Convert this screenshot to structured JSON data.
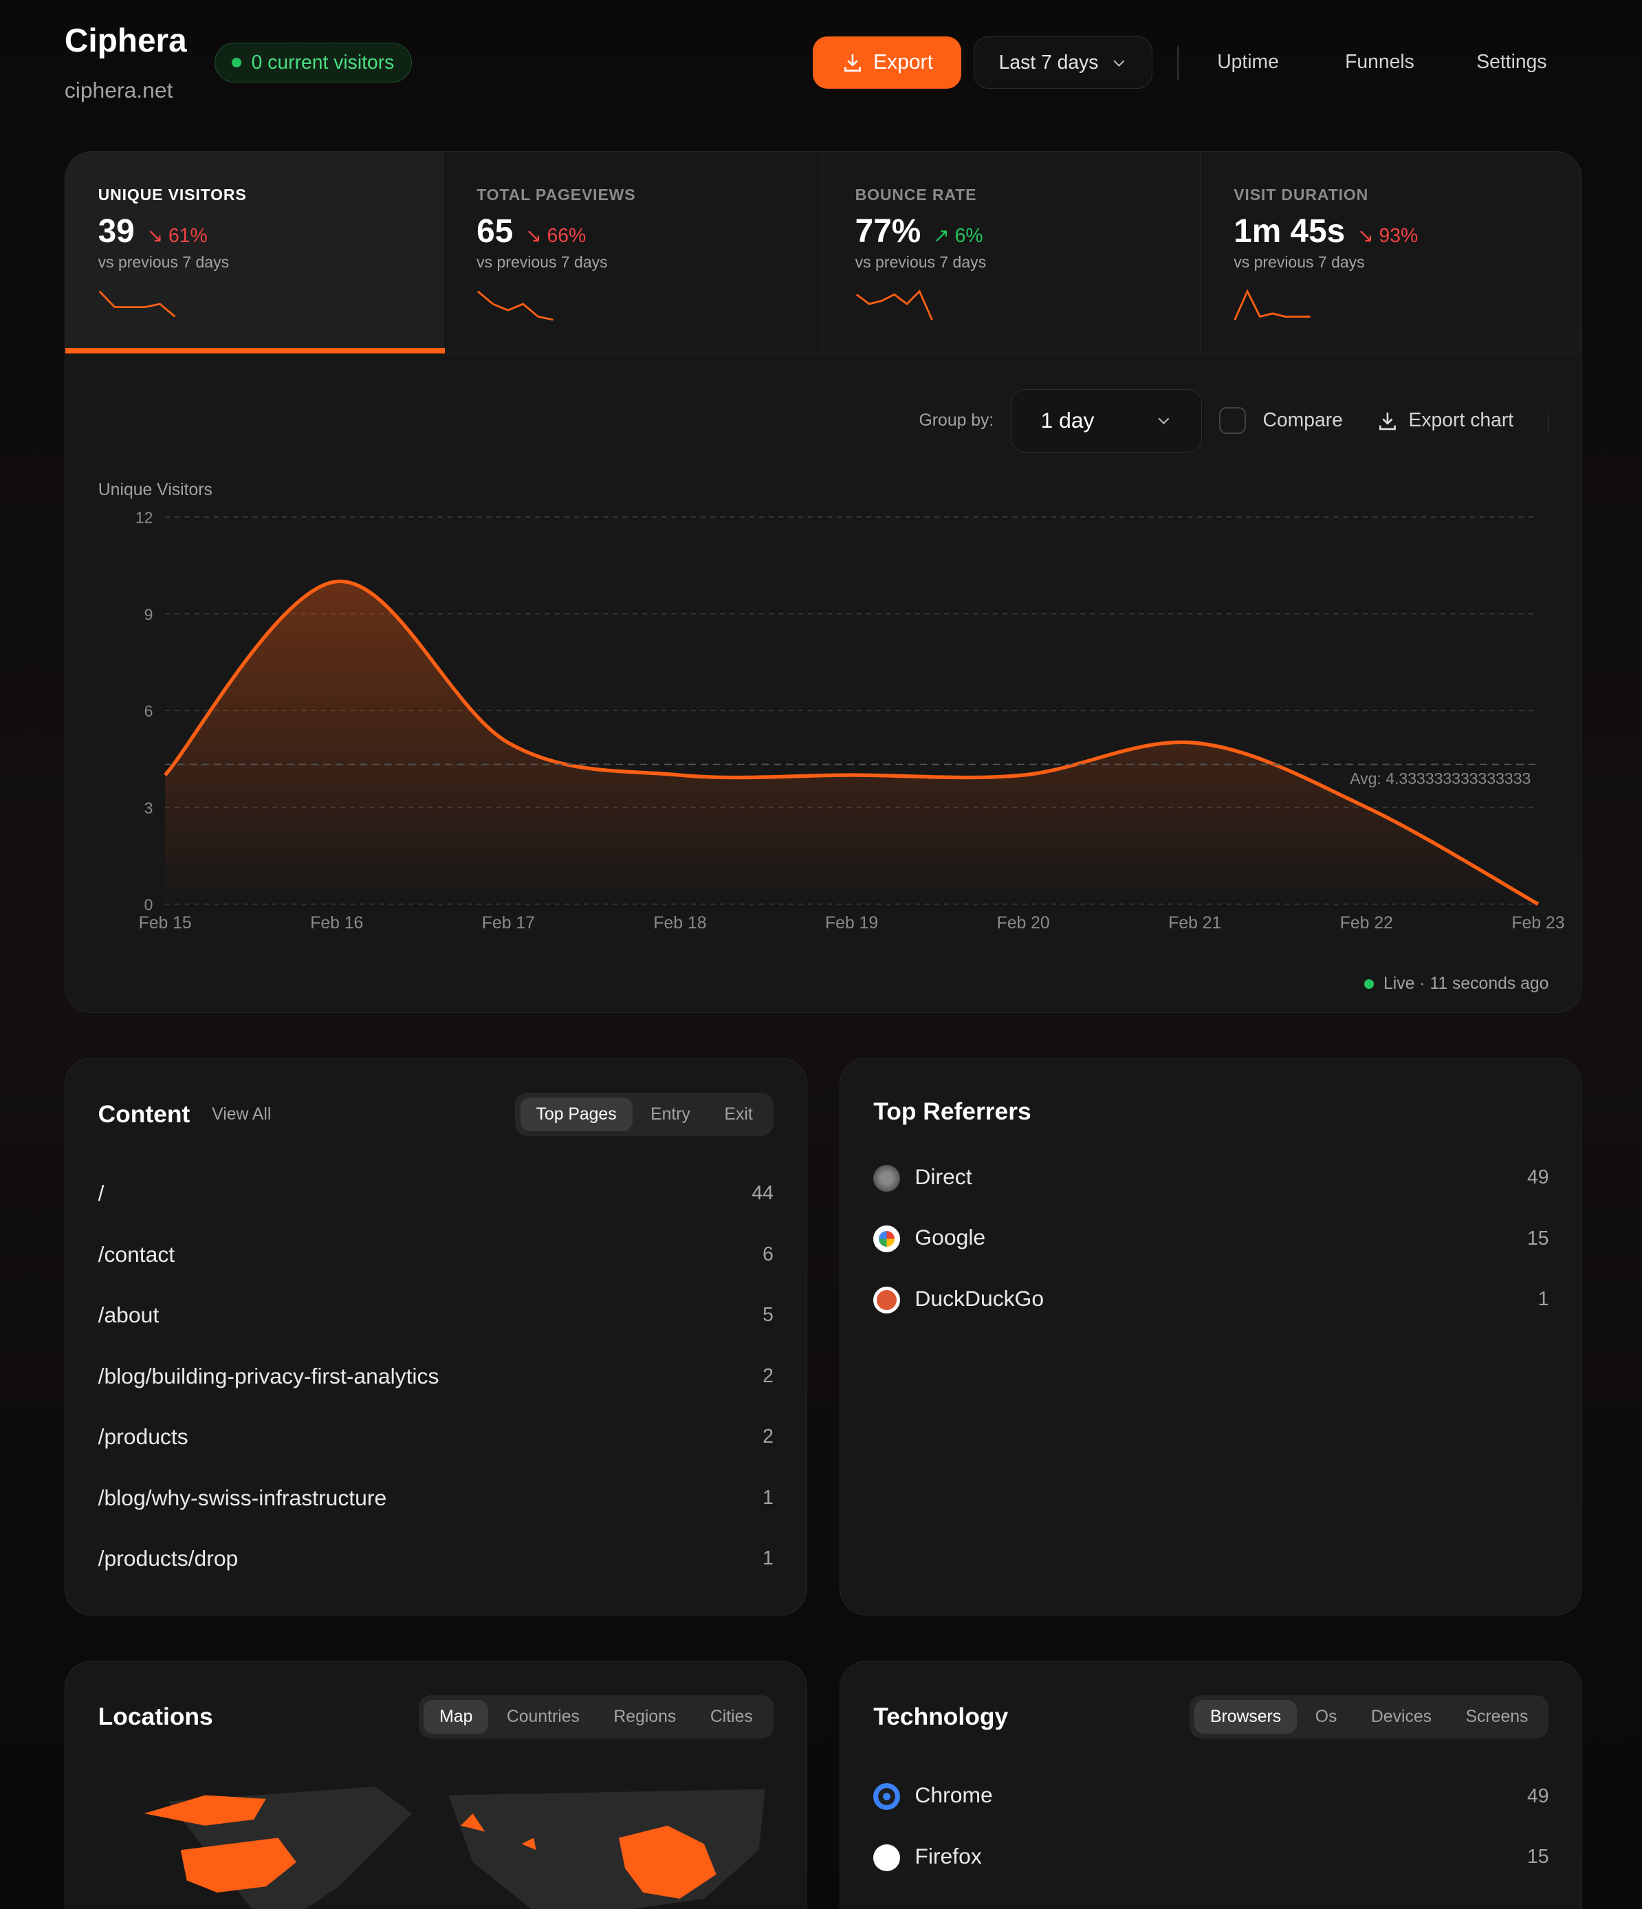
{
  "header": {
    "title": "Ciphera",
    "domain": "ciphera.net",
    "visitors_badge": "0 current visitors",
    "export_label": "Export",
    "date_range": "Last 7 days",
    "nav": [
      "Uptime",
      "Funnels",
      "Settings"
    ]
  },
  "colors": {
    "accent": "#fd5f14",
    "positive": "#22c55e",
    "negative": "#ef4444"
  },
  "stats": [
    {
      "label": "UNIQUE VISITORS",
      "value": "39",
      "change": "↘ 61%",
      "trend": "down",
      "vs": "vs previous 7 days",
      "spark": [
        9,
        4,
        4,
        4,
        5,
        1
      ]
    },
    {
      "label": "TOTAL PAGEVIEWS",
      "value": "65",
      "change": "↘ 66%",
      "trend": "down",
      "vs": "vs previous 7 days",
      "spark": [
        9,
        5,
        3,
        5,
        1,
        0
      ]
    },
    {
      "label": "BOUNCE RATE",
      "value": "77%",
      "change": "↗ 6%",
      "trend": "up",
      "vs": "vs previous 7 days",
      "spark": [
        8,
        5,
        6,
        8,
        5,
        9,
        0
      ]
    },
    {
      "label": "VISIT DURATION",
      "value": "1m 45s",
      "change": "↘ 93%",
      "trend": "down",
      "vs": "vs previous 7 days",
      "spark": [
        0,
        9,
        1,
        2,
        1,
        1,
        1
      ]
    }
  ],
  "chart_controls": {
    "group_by_label": "Group by:",
    "group_by_value": "1 day",
    "compare_label": "Compare",
    "export_chart_label": "Export chart",
    "live": "Live · 11 seconds ago"
  },
  "chart_data": {
    "type": "area",
    "ylabel": "Unique Visitors",
    "x": [
      "Feb 15",
      "Feb 16",
      "Feb 17",
      "Feb 18",
      "Feb 19",
      "Feb 20",
      "Feb 21",
      "Feb 22",
      "Feb 23"
    ],
    "values": [
      4,
      10,
      5,
      4,
      4,
      4,
      5,
      3,
      0
    ],
    "ylim": [
      0,
      12
    ],
    "yticks": [
      0,
      3,
      6,
      9,
      12
    ],
    "grid": true,
    "avg": 4.333333333333333,
    "avg_label": "Avg: 4.333333333333333"
  },
  "content": {
    "title": "Content",
    "view_all": "View All",
    "tabs": [
      "Top Pages",
      "Entry",
      "Exit"
    ],
    "rows": [
      {
        "path": "/",
        "count": "44"
      },
      {
        "path": "/contact",
        "count": "6"
      },
      {
        "path": "/about",
        "count": "5"
      },
      {
        "path": "/blog/building-privacy-first-analytics",
        "count": "2"
      },
      {
        "path": "/products",
        "count": "2"
      },
      {
        "path": "/blog/why-swiss-infrastructure",
        "count": "1"
      },
      {
        "path": "/products/drop",
        "count": "1"
      }
    ]
  },
  "referrers": {
    "title": "Top Referrers",
    "rows": [
      {
        "name": "Direct",
        "count": "49",
        "icon": "globe-icon"
      },
      {
        "name": "Google",
        "count": "15",
        "icon": "google-icon"
      },
      {
        "name": "DuckDuckGo",
        "count": "1",
        "icon": "duckduckgo-icon"
      }
    ]
  },
  "locations": {
    "title": "Locations",
    "tabs": [
      "Map",
      "Countries",
      "Regions",
      "Cities"
    ]
  },
  "technology": {
    "title": "Technology",
    "tabs": [
      "Browsers",
      "Os",
      "Devices",
      "Screens"
    ],
    "rows": [
      {
        "name": "Chrome",
        "count": "49",
        "icon": "chrome-icon"
      },
      {
        "name": "Firefox",
        "count": "15",
        "icon": "firefox-icon"
      }
    ]
  }
}
